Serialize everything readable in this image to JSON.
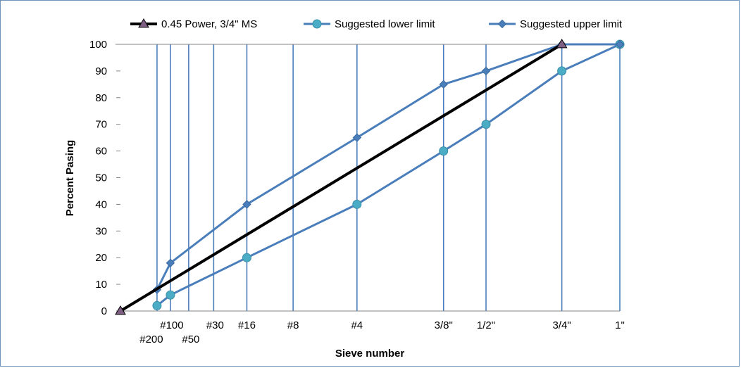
{
  "chart_data": {
    "type": "line",
    "title": "",
    "xlabel": "Sieve number",
    "ylabel": "Percent Pasing",
    "x_scale": "0.45 power",
    "ylim": [
      0,
      100
    ],
    "yticks": [
      0,
      10,
      20,
      30,
      40,
      50,
      60,
      70,
      80,
      90,
      100
    ],
    "grid": "vertical lines at sieve sizes",
    "legend_position": "top",
    "sieves": [
      {
        "label": "#200",
        "size_mm": 0.075
      },
      {
        "label": "#100",
        "size_mm": 0.15
      },
      {
        "label": "#50",
        "size_mm": 0.3
      },
      {
        "label": "#30",
        "size_mm": 0.6
      },
      {
        "label": "#16",
        "size_mm": 1.18
      },
      {
        "label": "#8",
        "size_mm": 2.36
      },
      {
        "label": "#4",
        "size_mm": 4.75
      },
      {
        "label": "3/8\"",
        "size_mm": 9.5
      },
      {
        "label": "1/2\"",
        "size_mm": 12.5
      },
      {
        "label": "3/4\"",
        "size_mm": 19.0
      },
      {
        "label": "1\"",
        "size_mm": 25.0
      }
    ],
    "series": [
      {
        "name": "0.45 Power, 3/4\" MS",
        "color": "#000000",
        "marker": "triangle",
        "points": [
          {
            "x": 0,
            "y": 0
          },
          {
            "x": 19.0,
            "y": 100
          }
        ]
      },
      {
        "name": "Suggested lower limit",
        "color": "#4a7ebb",
        "marker": "circle",
        "points": [
          {
            "x": 0.075,
            "y": 2
          },
          {
            "x": 0.15,
            "y": 6
          },
          {
            "x": 1.18,
            "y": 20
          },
          {
            "x": 4.75,
            "y": 40
          },
          {
            "x": 9.5,
            "y": 60
          },
          {
            "x": 12.5,
            "y": 70
          },
          {
            "x": 19.0,
            "y": 90
          },
          {
            "x": 25.0,
            "y": 100
          }
        ]
      },
      {
        "name": "Suggested upper limit",
        "color": "#4a7ebb",
        "marker": "diamond",
        "points": [
          {
            "x": 0.075,
            "y": 8
          },
          {
            "x": 0.15,
            "y": 18
          },
          {
            "x": 1.18,
            "y": 40
          },
          {
            "x": 4.75,
            "y": 65
          },
          {
            "x": 9.5,
            "y": 85
          },
          {
            "x": 12.5,
            "y": 90
          },
          {
            "x": 19.0,
            "y": 100
          },
          {
            "x": 25.0,
            "y": 100
          }
        ]
      }
    ],
    "colors": {
      "grid": "#4a7ebb",
      "marker_fill": "#4bacc6",
      "power_marker_fill": "#7f6084"
    }
  }
}
